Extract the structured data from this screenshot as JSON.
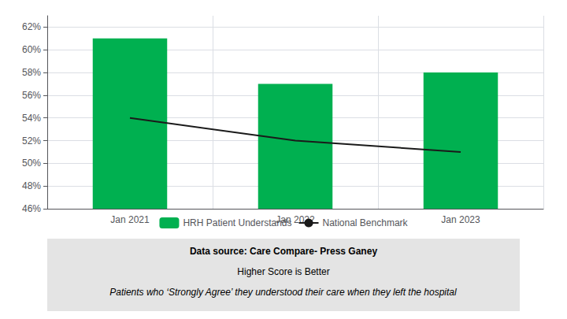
{
  "chart_data": {
    "type": "bar",
    "categories": [
      "Jan 2021",
      "Jan 2022",
      "Jan 2023"
    ],
    "series": [
      {
        "name": "HRH Patient Understands",
        "type": "bar",
        "color": "#00B050",
        "values": [
          61,
          57,
          58
        ]
      },
      {
        "name": "National Benchmark",
        "type": "line",
        "color": "#1a1a1a",
        "marker": "none",
        "values": [
          54,
          52,
          51
        ]
      }
    ],
    "ylim": [
      46,
      63
    ],
    "yticks": [
      {
        "value": 46,
        "label": "46%"
      },
      {
        "value": 48,
        "label": "48%"
      },
      {
        "value": 50,
        "label": "50%"
      },
      {
        "value": 52,
        "label": "52%"
      },
      {
        "value": 54,
        "label": "54%"
      },
      {
        "value": 56,
        "label": "56%"
      },
      {
        "value": 58,
        "label": "58%"
      },
      {
        "value": 60,
        "label": "60%"
      },
      {
        "value": 62,
        "label": "62%"
      }
    ],
    "grid": true,
    "legend": "bottom",
    "annotations": [
      "Data source: Care Compare- Press Ganey",
      "Higher Score is Better",
      "Patients who ‘Strongly Agree’ they understood their care when they left the hospital"
    ]
  }
}
